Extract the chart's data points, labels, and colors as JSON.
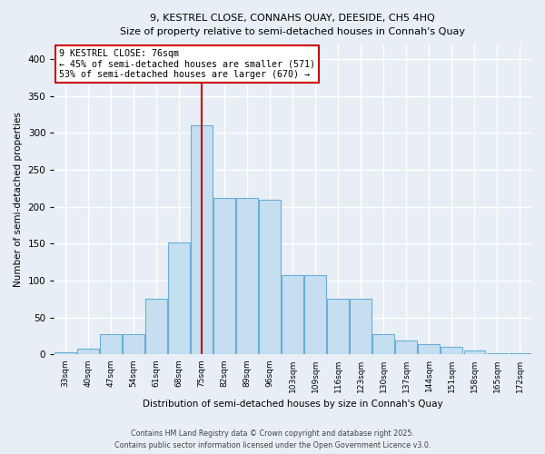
{
  "title1": "9, KESTREL CLOSE, CONNAHS QUAY, DEESIDE, CH5 4HQ",
  "title2": "Size of property relative to semi-detached houses in Connah's Quay",
  "xlabel": "Distribution of semi-detached houses by size in Connah's Quay",
  "ylabel": "Number of semi-detached properties",
  "categories": [
    "33sqm",
    "40sqm",
    "47sqm",
    "54sqm",
    "61sqm",
    "68sqm",
    "75sqm",
    "82sqm",
    "89sqm",
    "96sqm",
    "103sqm",
    "109sqm",
    "116sqm",
    "123sqm",
    "130sqm",
    "137sqm",
    "144sqm",
    "151sqm",
    "158sqm",
    "165sqm",
    "172sqm"
  ],
  "bar_heights": [
    3,
    8,
    27,
    27,
    75,
    152,
    311,
    212,
    212,
    209,
    108,
    108,
    76,
    76,
    27,
    19,
    14,
    10,
    5,
    2,
    2
  ],
  "bar_color": "#c5dff0",
  "bar_edge_color": "#6aaed6",
  "vline_index": 6,
  "vline_color": "#cc0000",
  "annotation_title": "9 KESTREL CLOSE: 76sqm",
  "annotation_line1": "← 45% of semi-detached houses are smaller (571)",
  "annotation_line2": "53% of semi-detached houses are larger (670) →",
  "annotation_box_color": "#ffffff",
  "annotation_box_edge": "#cc0000",
  "footer1": "Contains HM Land Registry data © Crown copyright and database right 2025.",
  "footer2": "Contains public sector information licensed under the Open Government Licence v3.0.",
  "bg_color": "#e8eef5",
  "plot_bg_color": "#e8eef5",
  "ylim": [
    0,
    420
  ],
  "yticks": [
    0,
    50,
    100,
    150,
    200,
    250,
    300,
    350,
    400
  ],
  "grid_color": "#ffffff"
}
